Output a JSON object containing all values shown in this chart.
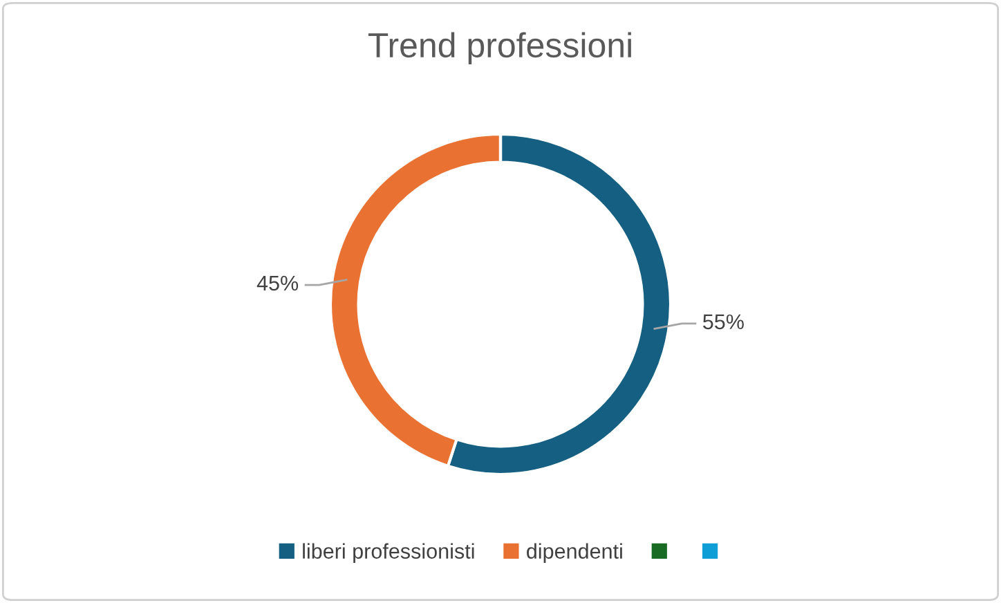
{
  "chart_data": {
    "type": "donut",
    "title": "Trend professioni",
    "categories": [
      "liberi professionisti",
      "dipendenti",
      null,
      null
    ],
    "values": [
      55,
      45,
      0,
      0
    ],
    "colors": [
      "#156082",
      "#e97132",
      "#196b24",
      "#0f9ed5"
    ],
    "value_labels": [
      "55%",
      "45%",
      null,
      null
    ],
    "legend": "bottom"
  }
}
